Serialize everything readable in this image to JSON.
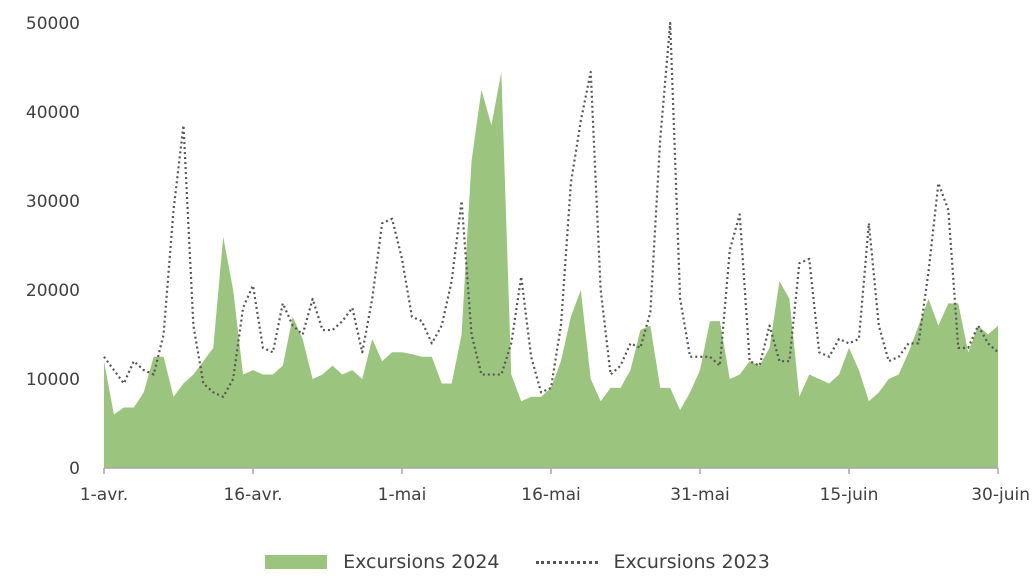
{
  "chart_data": {
    "type": "area",
    "x_start": "1-avr.",
    "x_tick_labels": [
      "1-avr.",
      "16-avr.",
      "1-mai",
      "16-mai",
      "31-mai",
      "15-juin",
      "30-juin"
    ],
    "y_tick_labels": [
      "0",
      "10000",
      "20000",
      "30000",
      "40000",
      "50000"
    ],
    "ylim": [
      0,
      50000
    ],
    "xlim_days": [
      0,
      90
    ],
    "grid": false,
    "legend_position": "bottom",
    "series": [
      {
        "name": "Excursions 2024",
        "style": "filled-area",
        "color": "#9bc57e",
        "values": [
          12000,
          6000,
          6800,
          6800,
          8500,
          12500,
          12500,
          8000,
          9500,
          10500,
          12000,
          13500,
          26000,
          20000,
          10500,
          11000,
          10500,
          10500,
          11500,
          17000,
          14500,
          10000,
          10500,
          11500,
          10500,
          11000,
          10000,
          14500,
          12000,
          13000,
          13000,
          12800,
          12500,
          12500,
          9500,
          9500,
          15000,
          34500,
          42500,
          38500,
          44500,
          10500,
          7500,
          8000,
          8000,
          9000,
          12000,
          17000,
          20000,
          10000,
          7500,
          9000,
          9000,
          11000,
          15500,
          16000,
          9000,
          9000,
          6500,
          8500,
          11000,
          16500,
          16500,
          10000,
          10500,
          12000,
          11500,
          13500,
          21000,
          19000,
          8000,
          10500,
          10000,
          9500,
          10500,
          13500,
          11000,
          7500,
          8500,
          10000,
          10500,
          13000,
          16000,
          19000,
          16000,
          18500,
          18500,
          13000,
          16000,
          15000,
          16000
        ]
      },
      {
        "name": "Excursions 2023",
        "style": "dotted-line",
        "color": "#555555",
        "values": [
          12500,
          11000,
          9500,
          12000,
          11000,
          10500,
          15000,
          29000,
          38500,
          16000,
          9500,
          8500,
          8000,
          10000,
          18000,
          20500,
          13500,
          13000,
          18500,
          16000,
          15000,
          19000,
          15500,
          15500,
          16500,
          18000,
          13000,
          19000,
          27500,
          28000,
          23500,
          17000,
          16500,
          14000,
          16000,
          21000,
          30000,
          15000,
          10500,
          10500,
          10500,
          14000,
          21500,
          12500,
          8500,
          9000,
          16000,
          32000,
          39000,
          44500,
          20000,
          10500,
          11500,
          14000,
          13500,
          17500,
          37000,
          50000,
          19000,
          12500,
          12500,
          12500,
          11500,
          24500,
          28500,
          12000,
          11500,
          16000,
          12000,
          12000,
          23000,
          23500,
          13000,
          12500,
          14500,
          14000,
          14500,
          27500,
          16000,
          12000,
          12500,
          14000,
          14000,
          22000,
          32000,
          29000,
          13500,
          13500,
          16000,
          14000,
          13000
        ]
      }
    ]
  }
}
